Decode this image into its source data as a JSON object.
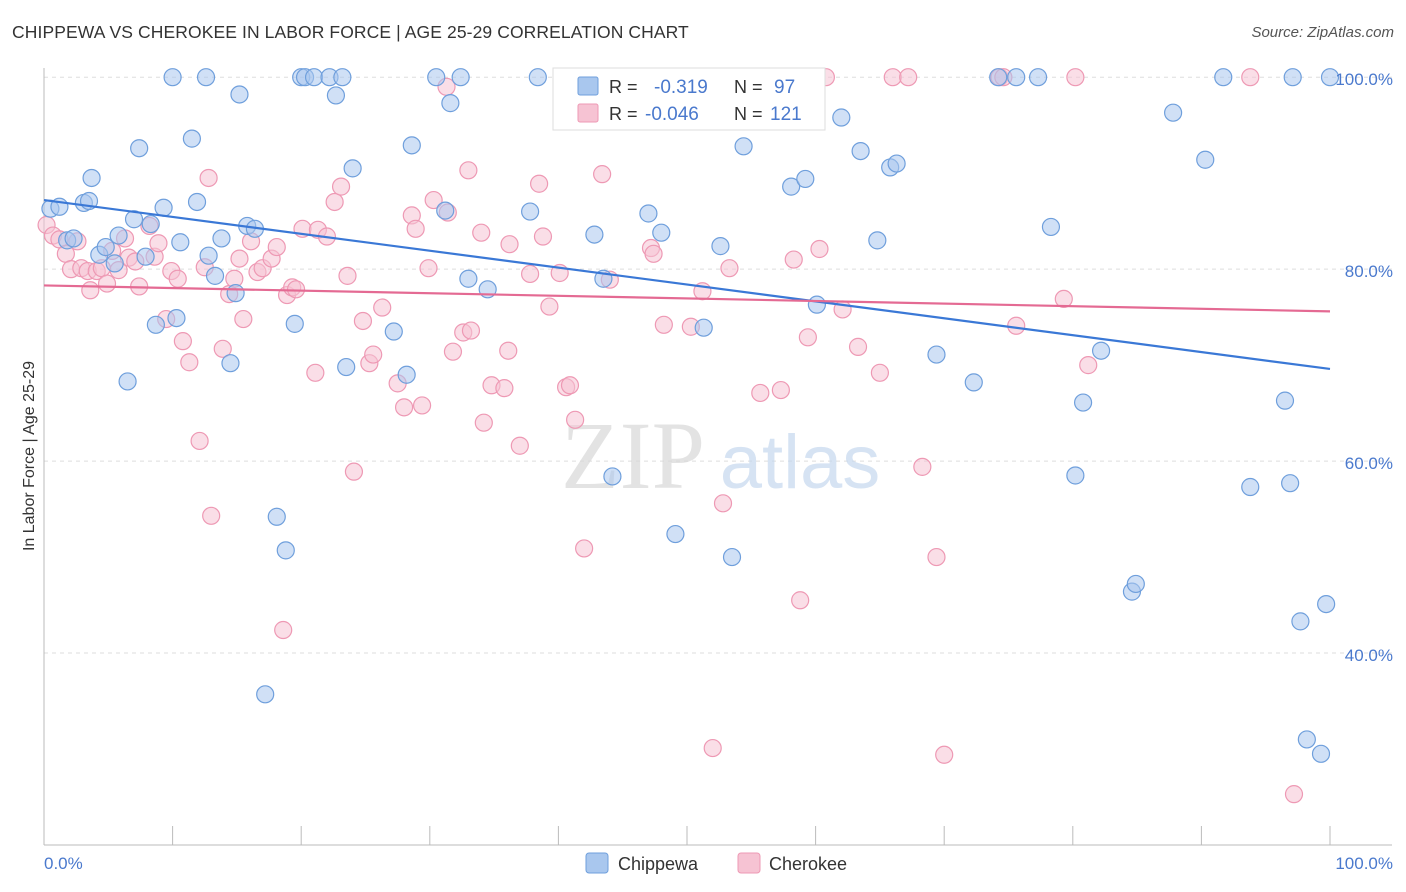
{
  "header": {
    "title": "CHIPPEWA VS CHEROKEE IN LABOR FORCE | AGE 25-29 CORRELATION CHART",
    "source": "Source: ZipAtlas.com"
  },
  "watermark": {
    "zip": "ZIP",
    "atlas": "atlas"
  },
  "colors": {
    "chippewa": "#6f9fdc",
    "chippewa_fill": "#a9c7ee",
    "chippewa_line": "#3a78d6",
    "cherokee": "#ee99b4",
    "cherokee_fill": "#f6c3d3",
    "cherokee_line": "#e46a93",
    "value_text": "#4a79cd",
    "grid": "#dddddd"
  },
  "legend": {
    "rows": [
      {
        "r_label": "R =",
        "r_value": "-0.319",
        "n_label": "N =",
        "n_value": "97"
      },
      {
        "r_label": "R =",
        "r_value": "-0.046",
        "n_label": "N =",
        "n_value": "121"
      }
    ]
  },
  "chart_data": {
    "type": "scatter",
    "title": "CHIPPEWA VS CHEROKEE IN LABOR FORCE | AGE 25-29 CORRELATION CHART",
    "ylabel": "In Labor Force | Age 25-29",
    "xlabel": "",
    "xlim": [
      0,
      100
    ],
    "ylim": [
      20,
      102
    ],
    "x_tick_labels": [
      "0.0%",
      "100.0%"
    ],
    "y_ticks": [
      100,
      80,
      60,
      40
    ],
    "y_tick_labels": [
      "100.0%",
      "80.0%",
      "60.0%",
      "40.0%"
    ],
    "grid": true,
    "legend_position": "top-center",
    "series": [
      {
        "name": "Chippewa",
        "r": -0.319,
        "n": 97,
        "trend": {
          "x": [
            0,
            100
          ],
          "y": [
            87.2,
            69.6
          ]
        },
        "points": [
          [
            0.5,
            86.3
          ],
          [
            1.2,
            86.5
          ],
          [
            1.8,
            83
          ],
          [
            2.3,
            83.2
          ],
          [
            3.1,
            86.9
          ],
          [
            3.5,
            87.1
          ],
          [
            3.7,
            89.5
          ],
          [
            4.3,
            81.5
          ],
          [
            4.8,
            82.3
          ],
          [
            5.5,
            80.6
          ],
          [
            5.8,
            83.5
          ],
          [
            6.5,
            68.3
          ],
          [
            7,
            85.2
          ],
          [
            7.4,
            92.6
          ],
          [
            7.9,
            81.3
          ],
          [
            8.3,
            84.7
          ],
          [
            8.7,
            74.2
          ],
          [
            9.3,
            86.4
          ],
          [
            10,
            100
          ],
          [
            10.3,
            74.9
          ],
          [
            10.6,
            82.8
          ],
          [
            11.5,
            93.6
          ],
          [
            11.9,
            87
          ],
          [
            12.6,
            100
          ],
          [
            12.8,
            81.4
          ],
          [
            13.3,
            79.3
          ],
          [
            13.8,
            83.2
          ],
          [
            14.5,
            70.2
          ],
          [
            14.9,
            77.5
          ],
          [
            15.2,
            98.2
          ],
          [
            15.8,
            84.5
          ],
          [
            16.4,
            84.2
          ],
          [
            17.2,
            35.7
          ],
          [
            18.1,
            54.2
          ],
          [
            18.8,
            50.7
          ],
          [
            19.5,
            74.3
          ],
          [
            20,
            100
          ],
          [
            20.3,
            100
          ],
          [
            21,
            100
          ],
          [
            22.2,
            100
          ],
          [
            22.7,
            98.1
          ],
          [
            23.2,
            100
          ],
          [
            23.5,
            69.8
          ],
          [
            24,
            90.5
          ],
          [
            27.2,
            73.5
          ],
          [
            28.2,
            69
          ],
          [
            28.6,
            92.9
          ],
          [
            30.5,
            100
          ],
          [
            31.2,
            86.1
          ],
          [
            31.6,
            97.3
          ],
          [
            32.4,
            100
          ],
          [
            33,
            79
          ],
          [
            34.5,
            77.9
          ],
          [
            37.8,
            86
          ],
          [
            38.4,
            100
          ],
          [
            40.3,
            100
          ],
          [
            42.8,
            83.6
          ],
          [
            43.5,
            79
          ],
          [
            44.2,
            58.4
          ],
          [
            45.5,
            95.5
          ],
          [
            46.3,
            100
          ],
          [
            47,
            85.8
          ],
          [
            48,
            83.8
          ],
          [
            49.1,
            52.4
          ],
          [
            51.3,
            73.9
          ],
          [
            52.6,
            82.4
          ],
          [
            53.5,
            50
          ],
          [
            54.4,
            92.8
          ],
          [
            58.1,
            88.6
          ],
          [
            59.2,
            89.4
          ],
          [
            60.1,
            76.3
          ],
          [
            62,
            95.8
          ],
          [
            63.5,
            92.3
          ],
          [
            64.8,
            83
          ],
          [
            65.8,
            90.6
          ],
          [
            66.3,
            91
          ],
          [
            69.4,
            71.1
          ],
          [
            72.3,
            68.2
          ],
          [
            74.2,
            100
          ],
          [
            75.6,
            100
          ],
          [
            77.3,
            100
          ],
          [
            78.3,
            84.4
          ],
          [
            80.2,
            58.5
          ],
          [
            80.8,
            66.1
          ],
          [
            82.2,
            71.5
          ],
          [
            84.6,
            46.4
          ],
          [
            84.9,
            47.2
          ],
          [
            87.8,
            96.3
          ],
          [
            90.3,
            91.4
          ],
          [
            91.7,
            100
          ],
          [
            93.8,
            57.3
          ],
          [
            96.5,
            66.3
          ],
          [
            96.9,
            57.7
          ],
          [
            97.1,
            100
          ],
          [
            97.7,
            43.3
          ],
          [
            98.2,
            31
          ],
          [
            99.3,
            29.5
          ],
          [
            99.7,
            45.1
          ],
          [
            100,
            100
          ]
        ]
      },
      {
        "name": "Cherokee",
        "r": -0.046,
        "n": 121,
        "trend": {
          "x": [
            0,
            100
          ],
          "y": [
            78.3,
            75.6
          ]
        },
        "points": [
          [
            0.2,
            84.6
          ],
          [
            0.7,
            83.5
          ],
          [
            1.2,
            83.1
          ],
          [
            1.7,
            81.6
          ],
          [
            2.1,
            80
          ],
          [
            2.6,
            82.9
          ],
          [
            2.9,
            80.1
          ],
          [
            3.4,
            79.8
          ],
          [
            3.6,
            77.8
          ],
          [
            4.1,
            79.8
          ],
          [
            4.5,
            80.1
          ],
          [
            4.9,
            78.5
          ],
          [
            5.3,
            81.9
          ],
          [
            5.8,
            79.9
          ],
          [
            6.3,
            83.2
          ],
          [
            6.6,
            81.2
          ],
          [
            7.1,
            80.8
          ],
          [
            7.4,
            78.2
          ],
          [
            8.2,
            84.5
          ],
          [
            8.6,
            81.3
          ],
          [
            8.9,
            82.7
          ],
          [
            9.5,
            74.8
          ],
          [
            9.9,
            79.8
          ],
          [
            10.4,
            79
          ],
          [
            10.8,
            72.5
          ],
          [
            11.3,
            70.3
          ],
          [
            12.1,
            62.1
          ],
          [
            12.5,
            80.2
          ],
          [
            12.8,
            89.5
          ],
          [
            13,
            54.3
          ],
          [
            13.9,
            71.7
          ],
          [
            14.4,
            77.4
          ],
          [
            14.8,
            79
          ],
          [
            15.2,
            81.1
          ],
          [
            15.5,
            74.8
          ],
          [
            16.1,
            82.9
          ],
          [
            16.6,
            79.7
          ],
          [
            17,
            80.1
          ],
          [
            17.7,
            81.1
          ],
          [
            18.1,
            82.3
          ],
          [
            18.6,
            42.4
          ],
          [
            18.9,
            77.3
          ],
          [
            19.3,
            78.1
          ],
          [
            19.6,
            77.9
          ],
          [
            20.1,
            84.2
          ],
          [
            21.1,
            69.2
          ],
          [
            21.3,
            84.1
          ],
          [
            22,
            83.4
          ],
          [
            22.6,
            87
          ],
          [
            23.1,
            88.6
          ],
          [
            23.6,
            79.3
          ],
          [
            24.1,
            58.9
          ],
          [
            24.8,
            74.6
          ],
          [
            25.3,
            70.2
          ],
          [
            25.6,
            71.1
          ],
          [
            26.3,
            76
          ],
          [
            27.5,
            68.1
          ],
          [
            28,
            65.6
          ],
          [
            28.6,
            85.6
          ],
          [
            29.4,
            65.8
          ],
          [
            29.9,
            80.1
          ],
          [
            30.3,
            87.2
          ],
          [
            31.3,
            99
          ],
          [
            31.4,
            85.9
          ],
          [
            31.8,
            71.4
          ],
          [
            32.6,
            73.4
          ],
          [
            33,
            90.3
          ],
          [
            33.2,
            73.6
          ],
          [
            34,
            83.8
          ],
          [
            34.2,
            64
          ],
          [
            34.8,
            67.9
          ],
          [
            35.8,
            67.6
          ],
          [
            36.1,
            71.5
          ],
          [
            37,
            61.6
          ],
          [
            37.8,
            79.5
          ],
          [
            38.5,
            88.9
          ],
          [
            38.8,
            83.4
          ],
          [
            39.3,
            76.1
          ],
          [
            40.1,
            79.6
          ],
          [
            40.6,
            67.7
          ],
          [
            40.9,
            67.9
          ],
          [
            41.3,
            64.3
          ],
          [
            42,
            50.9
          ],
          [
            43.4,
            89.9
          ],
          [
            44,
            78.9
          ],
          [
            44.2,
            100
          ],
          [
            47.2,
            82.2
          ],
          [
            47.4,
            81.6
          ],
          [
            48.2,
            74.2
          ],
          [
            50.3,
            74
          ],
          [
            51.2,
            77.7
          ],
          [
            52,
            30.1
          ],
          [
            52.8,
            55.6
          ],
          [
            53.3,
            80.1
          ],
          [
            53.6,
            100
          ],
          [
            54.6,
            100
          ],
          [
            55.7,
            67.1
          ],
          [
            58.3,
            81
          ],
          [
            58.8,
            45.5
          ],
          [
            59.4,
            72.9
          ],
          [
            60.3,
            82.1
          ],
          [
            60.8,
            100
          ],
          [
            62.1,
            75.8
          ],
          [
            63.3,
            71.9
          ],
          [
            65,
            69.2
          ],
          [
            66,
            100
          ],
          [
            67.2,
            100
          ],
          [
            68.3,
            59.4
          ],
          [
            69.4,
            50
          ],
          [
            70,
            29.4
          ],
          [
            74.3,
            100
          ],
          [
            74.6,
            100
          ],
          [
            75.6,
            74.1
          ],
          [
            79.3,
            76.9
          ],
          [
            80.2,
            100
          ],
          [
            81.2,
            70
          ],
          [
            93.8,
            100
          ],
          [
            97.2,
            25.3
          ],
          [
            28.9,
            84.2
          ],
          [
            36.2,
            82.6
          ],
          [
            57.3,
            67.4
          ]
        ]
      }
    ]
  }
}
